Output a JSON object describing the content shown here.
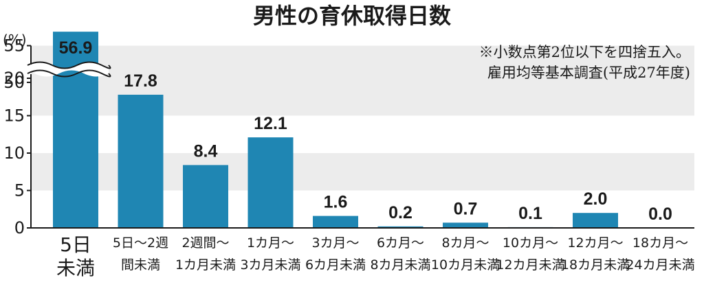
{
  "chart_data": {
    "type": "bar",
    "title": "男性の育休取得日数",
    "y_unit": "(%)",
    "notes": [
      "※小数点第2位以下を四捨五入。",
      "雇用均等基本調査(平成27年度)"
    ],
    "axis_break": {
      "lower_max": 20,
      "upper_ticks": [
        50,
        55
      ]
    },
    "ylim": [
      0,
      55
    ],
    "yticks": [
      0,
      5,
      10,
      15,
      20,
      50,
      55
    ],
    "grid": "alternating-bands",
    "categories": [
      [
        "5日",
        "未満"
      ],
      [
        "5日～2週",
        "間未満"
      ],
      [
        "2週間～",
        "1カ月未満"
      ],
      [
        "1カ月～",
        "3カ月未満"
      ],
      [
        "3カ月～",
        "6カ月未満"
      ],
      [
        "6カ月～",
        "8カ月未満"
      ],
      [
        "8カ月～",
        "10カ月未満"
      ],
      [
        "10カ月～",
        "12カ月未満"
      ],
      [
        "12カ月～",
        "18カ月未満"
      ],
      [
        "18カ月～",
        "24カ月未満"
      ]
    ],
    "values": [
      56.9,
      17.8,
      8.4,
      12.1,
      1.6,
      0.2,
      0.7,
      0.1,
      2.0,
      0.0
    ],
    "value_labels": [
      "56.9",
      "17.8",
      "8.4",
      "12.1",
      "1.6",
      "0.2",
      "0.7",
      "0.1",
      "2.0",
      "0.0"
    ],
    "colors": {
      "bar": "#1f86b3",
      "band": "#ececec",
      "axis": "#1a1a1a",
      "label_inside": "#ffffff"
    }
  }
}
